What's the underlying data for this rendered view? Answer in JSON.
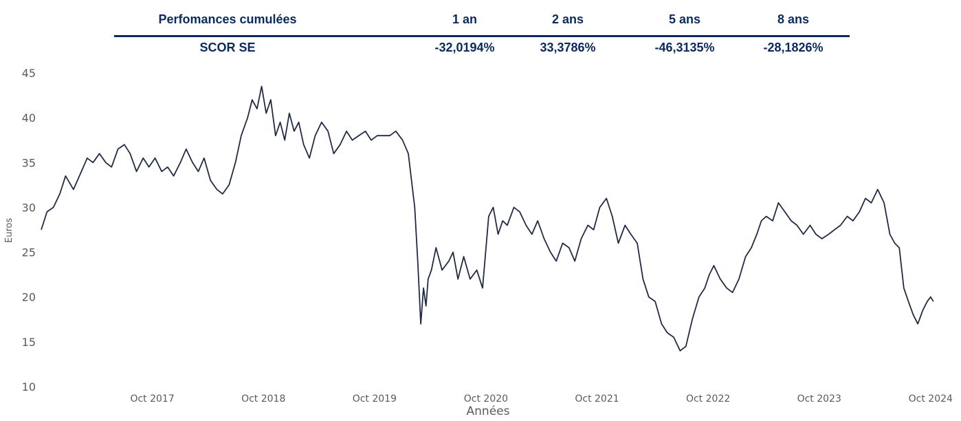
{
  "performance_table": {
    "headers": [
      "Perfomances cumulées",
      "1 an",
      "2 ans",
      "5 ans",
      "8 ans"
    ],
    "row": [
      "SCOR SE",
      "-32,0194%",
      "33,3786%",
      "-46,3135%",
      "-28,1826%"
    ]
  },
  "colors": {
    "table_text": "#0a2a5e",
    "line": "#1f2a44",
    "tick_text": "#5a5a5a"
  },
  "chart_data": {
    "type": "line",
    "title": "",
    "xlabel": "Années",
    "ylabel": "Euros",
    "ylim": [
      10,
      45
    ],
    "yticks": [
      10,
      15,
      20,
      25,
      30,
      35,
      40,
      45
    ],
    "xlim": [
      "2016-10-01",
      "2024-10-15"
    ],
    "xticks": [
      {
        "date": "2017-10-01",
        "label": "Oct 2017"
      },
      {
        "date": "2018-10-01",
        "label": "Oct 2018"
      },
      {
        "date": "2019-10-01",
        "label": "Oct 2019"
      },
      {
        "date": "2020-10-01",
        "label": "Oct 2020"
      },
      {
        "date": "2021-10-01",
        "label": "Oct 2021"
      },
      {
        "date": "2022-10-01",
        "label": "Oct 2022"
      },
      {
        "date": "2023-10-01",
        "label": "Oct 2023"
      },
      {
        "date": "2024-10-01",
        "label": "Oct 2024"
      }
    ],
    "grid": false,
    "series": [
      {
        "name": "SCOR SE",
        "x": [
          "2016-10-01",
          "2016-10-20",
          "2016-11-10",
          "2016-12-01",
          "2016-12-20",
          "2017-01-15",
          "2017-02-10",
          "2017-03-01",
          "2017-03-20",
          "2017-04-10",
          "2017-05-01",
          "2017-05-20",
          "2017-06-10",
          "2017-07-01",
          "2017-07-20",
          "2017-08-10",
          "2017-09-01",
          "2017-09-20",
          "2017-10-10",
          "2017-11-01",
          "2017-11-20",
          "2017-12-10",
          "2018-01-01",
          "2018-01-20",
          "2018-02-10",
          "2018-03-01",
          "2018-03-20",
          "2018-04-10",
          "2018-05-01",
          "2018-05-20",
          "2018-06-10",
          "2018-07-01",
          "2018-07-20",
          "2018-08-10",
          "2018-08-25",
          "2018-09-10",
          "2018-09-25",
          "2018-10-10",
          "2018-10-25",
          "2018-11-10",
          "2018-11-25",
          "2018-12-10",
          "2018-12-25",
          "2019-01-10",
          "2019-01-25",
          "2019-02-10",
          "2019-03-01",
          "2019-03-20",
          "2019-04-10",
          "2019-05-01",
          "2019-05-20",
          "2019-06-10",
          "2019-07-01",
          "2019-07-20",
          "2019-08-10",
          "2019-09-01",
          "2019-09-20",
          "2019-10-10",
          "2019-11-01",
          "2019-11-20",
          "2019-12-10",
          "2020-01-01",
          "2020-01-20",
          "2020-02-10",
          "2020-02-20",
          "2020-03-01",
          "2020-03-10",
          "2020-03-18",
          "2020-03-25",
          "2020-04-05",
          "2020-04-20",
          "2020-05-10",
          "2020-06-01",
          "2020-06-15",
          "2020-07-01",
          "2020-07-20",
          "2020-08-10",
          "2020-09-01",
          "2020-09-20",
          "2020-10-10",
          "2020-10-25",
          "2020-11-10",
          "2020-11-25",
          "2020-12-10",
          "2021-01-01",
          "2021-01-20",
          "2021-02-10",
          "2021-03-01",
          "2021-03-20",
          "2021-04-10",
          "2021-05-01",
          "2021-05-20",
          "2021-06-10",
          "2021-07-01",
          "2021-07-20",
          "2021-08-10",
          "2021-09-01",
          "2021-09-20",
          "2021-10-10",
          "2021-11-01",
          "2021-11-20",
          "2021-12-10",
          "2022-01-01",
          "2022-01-20",
          "2022-02-10",
          "2022-03-01",
          "2022-03-20",
          "2022-04-10",
          "2022-05-01",
          "2022-05-20",
          "2022-06-10",
          "2022-07-01",
          "2022-07-20",
          "2022-08-10",
          "2022-09-01",
          "2022-09-20",
          "2022-10-05",
          "2022-10-20",
          "2022-11-10",
          "2022-12-01",
          "2022-12-20",
          "2023-01-10",
          "2023-02-01",
          "2023-02-20",
          "2023-03-10",
          "2023-03-25",
          "2023-04-10",
          "2023-05-01",
          "2023-05-20",
          "2023-06-10",
          "2023-07-01",
          "2023-07-20",
          "2023-08-10",
          "2023-09-01",
          "2023-09-20",
          "2023-10-10",
          "2023-11-01",
          "2023-11-20",
          "2023-12-10",
          "2024-01-01",
          "2024-01-20",
          "2024-02-10",
          "2024-03-01",
          "2024-03-20",
          "2024-04-10",
          "2024-05-01",
          "2024-05-20",
          "2024-06-05",
          "2024-06-20",
          "2024-07-05",
          "2024-07-20",
          "2024-08-05",
          "2024-08-20",
          "2024-09-05",
          "2024-09-20",
          "2024-10-01",
          "2024-10-10"
        ],
        "values": [
          27.5,
          29.5,
          30.0,
          31.5,
          33.5,
          32.0,
          34.0,
          35.5,
          35.0,
          36.0,
          35.0,
          34.5,
          36.5,
          37.0,
          36.0,
          34.0,
          35.5,
          34.5,
          35.5,
          34.0,
          34.5,
          33.5,
          35.0,
          36.5,
          35.0,
          34.0,
          35.5,
          33.0,
          32.0,
          31.5,
          32.5,
          35.0,
          38.0,
          40.0,
          42.0,
          41.0,
          43.5,
          40.5,
          42.0,
          38.0,
          39.5,
          37.5,
          40.5,
          38.5,
          39.5,
          37.0,
          35.5,
          38.0,
          39.5,
          38.5,
          36.0,
          37.0,
          38.5,
          37.5,
          38.0,
          38.5,
          37.5,
          38.0,
          38.0,
          38.0,
          38.5,
          37.5,
          36.0,
          30.0,
          24.0,
          17.0,
          21.0,
          19.0,
          22.0,
          23.0,
          25.5,
          23.0,
          24.0,
          25.0,
          22.0,
          24.5,
          22.0,
          23.0,
          21.0,
          29.0,
          30.0,
          27.0,
          28.5,
          28.0,
          30.0,
          29.5,
          28.0,
          27.0,
          28.5,
          26.5,
          25.0,
          24.0,
          26.0,
          25.5,
          24.0,
          26.5,
          28.0,
          27.5,
          30.0,
          31.0,
          29.0,
          26.0,
          28.0,
          27.0,
          26.0,
          22.0,
          20.0,
          19.5,
          17.0,
          16.0,
          15.5,
          14.0,
          14.5,
          17.5,
          20.0,
          21.0,
          22.5,
          23.5,
          22.0,
          21.0,
          20.5,
          22.0,
          24.5,
          25.5,
          27.0,
          28.5,
          29.0,
          28.5,
          30.5,
          29.5,
          28.5,
          28.0,
          27.0,
          28.0,
          27.0,
          26.5,
          27.0,
          27.5,
          28.0,
          29.0,
          28.5,
          29.5,
          31.0,
          30.5,
          32.0,
          30.5,
          27.0,
          26.0,
          25.5,
          21.0,
          19.5,
          18.0,
          17.0,
          18.5,
          19.5,
          20.0,
          19.5
        ]
      }
    ]
  }
}
